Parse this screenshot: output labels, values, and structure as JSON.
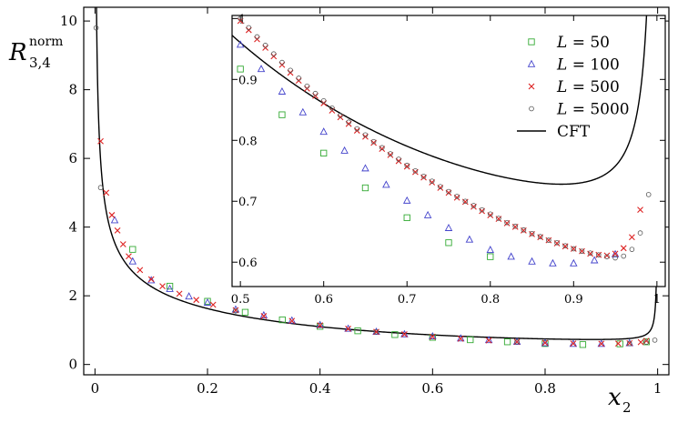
{
  "chart_data": [
    {
      "panel": "main",
      "type": "scatter",
      "ylabel_main": "R",
      "ylabel_sub": "3,4",
      "ylabel_sup": "norm",
      "xlabel_main": "x",
      "xlabel_sub": "2",
      "xlim": [
        -0.02,
        1.02
      ],
      "ylim": [
        -0.3,
        10.4
      ],
      "xticks": [
        0,
        0.2,
        0.4,
        0.6,
        0.8,
        1
      ],
      "xtick_labels": [
        "0",
        "0.2",
        "0.4",
        "0.6",
        "0.8",
        "1"
      ],
      "yticks": [
        0,
        2,
        4,
        6,
        8,
        10
      ],
      "ytick_labels": [
        "0",
        "2",
        "4",
        "6",
        "8",
        "10"
      ],
      "series": [
        {
          "name": "L = 50",
          "marker": "square",
          "color": "#33aa33",
          "x": [
            0.067,
            0.133,
            0.2,
            0.267,
            0.333,
            0.4,
            0.467,
            0.533,
            0.6,
            0.667,
            0.733,
            0.8,
            0.867,
            0.933,
            0.98
          ],
          "y": [
            3.35,
            2.28,
            1.84,
            1.52,
            1.3,
            1.11,
            0.98,
            0.87,
            0.79,
            0.72,
            0.66,
            0.61,
            0.58,
            0.6,
            0.66
          ]
        },
        {
          "name": "L = 100",
          "marker": "triangle",
          "color": "#4444cc",
          "x": [
            0.035,
            0.067,
            0.1,
            0.133,
            0.167,
            0.2,
            0.25,
            0.3,
            0.35,
            0.4,
            0.45,
            0.5,
            0.55,
            0.6,
            0.65,
            0.7,
            0.75,
            0.8,
            0.85,
            0.9,
            0.95
          ],
          "y": [
            4.2,
            3.0,
            2.45,
            2.2,
            1.98,
            1.8,
            1.6,
            1.43,
            1.28,
            1.15,
            1.04,
            0.95,
            0.88,
            0.82,
            0.76,
            0.71,
            0.66,
            0.62,
            0.6,
            0.6,
            0.62
          ]
        },
        {
          "name": "L = 500",
          "marker": "cross",
          "color": "#dd2222",
          "x": [
            0.01,
            0.02,
            0.03,
            0.04,
            0.05,
            0.06,
            0.08,
            0.1,
            0.12,
            0.15,
            0.18,
            0.21,
            0.25,
            0.3,
            0.35,
            0.4,
            0.45,
            0.5,
            0.55,
            0.6,
            0.65,
            0.7,
            0.75,
            0.8,
            0.85,
            0.9,
            0.93,
            0.95,
            0.97,
            0.98
          ],
          "y": [
            6.5,
            5.0,
            4.35,
            3.9,
            3.5,
            3.15,
            2.75,
            2.48,
            2.28,
            2.06,
            1.88,
            1.74,
            1.58,
            1.41,
            1.27,
            1.14,
            1.04,
            0.95,
            0.88,
            0.81,
            0.75,
            0.7,
            0.66,
            0.63,
            0.61,
            0.605,
            0.61,
            0.62,
            0.65,
            0.69
          ]
        },
        {
          "name": "L = 5000",
          "marker": "circle",
          "color": "#555555",
          "x": [
            0.002,
            0.01,
            0.25,
            0.5,
            0.75,
            0.95,
            0.98,
            0.995
          ],
          "y": [
            9.8,
            5.15,
            1.56,
            0.95,
            0.66,
            0.61,
            0.65,
            0.71
          ]
        },
        {
          "name": "CFT",
          "type": "line",
          "color": "#000000"
        }
      ]
    },
    {
      "panel": "inset",
      "type": "scatter",
      "xlim": [
        0.49,
        1.01
      ],
      "ylim": [
        0.56,
        1.005
      ],
      "xticks": [
        0.5,
        0.6,
        0.7,
        0.8,
        0.9,
        1
      ],
      "xtick_labels": [
        "0.5",
        "0.6",
        "0.7",
        "0.8",
        "0.9",
        "1"
      ],
      "yticks": [
        0.6,
        0.7,
        0.8,
        0.9,
        1
      ],
      "ytick_labels": [
        "0.6",
        "0.7",
        "0.8",
        "0.9",
        "1"
      ],
      "legend_placement": "top-right",
      "series": [
        {
          "name": "L = 50",
          "marker": "square",
          "color": "#33aa33",
          "x": [
            0.5,
            0.55,
            0.6,
            0.65,
            0.7,
            0.75,
            0.8
          ],
          "y": [
            0.917,
            0.842,
            0.779,
            0.722,
            0.673,
            0.632,
            0.609
          ]
        },
        {
          "name": "L = 100",
          "marker": "triangle",
          "color": "#4444cc",
          "x": [
            0.5,
            0.525,
            0.55,
            0.575,
            0.6,
            0.625,
            0.65,
            0.675,
            0.7,
            0.725,
            0.75,
            0.775,
            0.8,
            0.825,
            0.85,
            0.875,
            0.9,
            0.925,
            0.95
          ],
          "y": [
            0.957,
            0.917,
            0.88,
            0.846,
            0.814,
            0.783,
            0.754,
            0.727,
            0.701,
            0.677,
            0.656,
            0.637,
            0.62,
            0.609,
            0.601,
            0.598,
            0.598,
            0.603,
            0.613
          ]
        },
        {
          "name": "L = 500",
          "marker": "cross",
          "color": "#dd2222",
          "x": [
            0.5,
            0.51,
            0.52,
            0.53,
            0.54,
            0.55,
            0.56,
            0.57,
            0.58,
            0.59,
            0.6,
            0.61,
            0.62,
            0.63,
            0.64,
            0.65,
            0.66,
            0.67,
            0.68,
            0.69,
            0.7,
            0.71,
            0.72,
            0.73,
            0.74,
            0.75,
            0.76,
            0.77,
            0.78,
            0.79,
            0.8,
            0.81,
            0.82,
            0.83,
            0.84,
            0.85,
            0.86,
            0.87,
            0.88,
            0.89,
            0.9,
            0.91,
            0.92,
            0.93,
            0.94,
            0.95,
            0.96,
            0.97,
            0.98
          ],
          "y": [
            0.996,
            0.981,
            0.966,
            0.952,
            0.938,
            0.924,
            0.911,
            0.898,
            0.885,
            0.873,
            0.861,
            0.849,
            0.838,
            0.827,
            0.816,
            0.806,
            0.796,
            0.786,
            0.776,
            0.766,
            0.757,
            0.748,
            0.739,
            0.731,
            0.722,
            0.714,
            0.706,
            0.699,
            0.691,
            0.684,
            0.677,
            0.671,
            0.664,
            0.658,
            0.652,
            0.646,
            0.641,
            0.636,
            0.631,
            0.626,
            0.622,
            0.618,
            0.614,
            0.612,
            0.611,
            0.614,
            0.623,
            0.641,
            0.686
          ]
        },
        {
          "name": "L = 5000",
          "marker": "circle",
          "color": "#555555",
          "x": [
            0.5,
            0.51,
            0.52,
            0.53,
            0.54,
            0.55,
            0.56,
            0.57,
            0.58,
            0.59,
            0.6,
            0.61,
            0.62,
            0.63,
            0.64,
            0.65,
            0.66,
            0.67,
            0.68,
            0.69,
            0.7,
            0.71,
            0.72,
            0.73,
            0.74,
            0.75,
            0.76,
            0.77,
            0.78,
            0.79,
            0.8,
            0.81,
            0.82,
            0.83,
            0.84,
            0.85,
            0.86,
            0.87,
            0.88,
            0.89,
            0.9,
            0.91,
            0.92,
            0.93,
            0.94,
            0.95,
            0.96,
            0.97,
            0.98,
            0.99
          ],
          "y": [
            1.0,
            0.985,
            0.97,
            0.956,
            0.942,
            0.928,
            0.915,
            0.902,
            0.889,
            0.877,
            0.865,
            0.853,
            0.841,
            0.83,
            0.819,
            0.809,
            0.798,
            0.788,
            0.778,
            0.769,
            0.759,
            0.75,
            0.741,
            0.733,
            0.724,
            0.716,
            0.708,
            0.7,
            0.693,
            0.686,
            0.679,
            0.672,
            0.665,
            0.659,
            0.653,
            0.647,
            0.642,
            0.636,
            0.632,
            0.627,
            0.622,
            0.618,
            0.615,
            0.612,
            0.609,
            0.607,
            0.61,
            0.621,
            0.648,
            0.711
          ]
        },
        {
          "name": "CFT",
          "type": "line",
          "color": "#000000"
        }
      ]
    }
  ]
}
